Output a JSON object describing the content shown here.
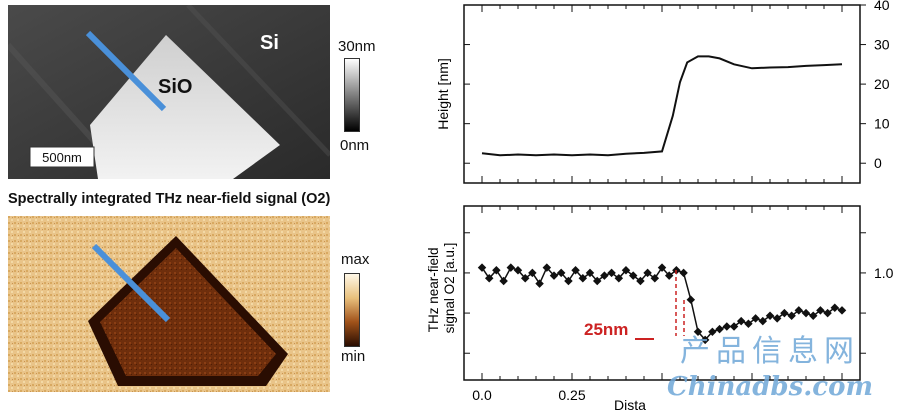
{
  "afm": {
    "label_si": "Si",
    "label_sio": "SiO",
    "scale_bar": "500nm",
    "colorbar_top": "30nm",
    "colorbar_bottom": "0nm"
  },
  "thz_map": {
    "title": "Spectrally integrated THz near-field signal (O2)",
    "colorbar_top": "max",
    "colorbar_bottom": "min"
  },
  "chart_data": [
    {
      "type": "line",
      "ylabel": "Height [nm]",
      "y_right_ticks": [
        "40",
        "30",
        "20",
        "10",
        "0"
      ],
      "ylim": [
        -5,
        40
      ],
      "xlim": [
        -0.05,
        1.05
      ],
      "x": [
        0.0,
        0.05,
        0.1,
        0.15,
        0.2,
        0.25,
        0.3,
        0.35,
        0.4,
        0.45,
        0.5,
        0.53,
        0.55,
        0.57,
        0.6,
        0.63,
        0.66,
        0.7,
        0.75,
        0.8,
        0.85,
        0.9,
        0.95,
        1.0
      ],
      "y": [
        2.5,
        2.0,
        2.2,
        2.0,
        2.2,
        2.0,
        2.2,
        2.0,
        2.4,
        2.6,
        3.0,
        12.0,
        20.5,
        25.5,
        27.0,
        27.0,
        26.5,
        25.0,
        24.0,
        24.2,
        24.3,
        24.6,
        24.8,
        25.0
      ]
    },
    {
      "type": "line",
      "ylabel": "THz near-field signal O2 [a.u.]",
      "y_right_ticks": [
        "1.0"
      ],
      "xlabel": "Dista",
      "x_tick_labels": [
        "0.0",
        "0.25"
      ],
      "ylim": [
        0.6,
        1.25
      ],
      "xlim": [
        -0.05,
        1.05
      ],
      "annotation": "25nm",
      "x": [
        0.0,
        0.02,
        0.04,
        0.06,
        0.08,
        0.1,
        0.12,
        0.14,
        0.16,
        0.18,
        0.2,
        0.22,
        0.24,
        0.26,
        0.28,
        0.3,
        0.32,
        0.34,
        0.36,
        0.38,
        0.4,
        0.42,
        0.44,
        0.46,
        0.48,
        0.5,
        0.52,
        0.54,
        0.56,
        0.58,
        0.6,
        0.62,
        0.64,
        0.66,
        0.68,
        0.7,
        0.72,
        0.74,
        0.76,
        0.78,
        0.8,
        0.82,
        0.84,
        0.86,
        0.88,
        0.9,
        0.92,
        0.94,
        0.96,
        0.98,
        1.0
      ],
      "y": [
        1.02,
        0.98,
        1.01,
        0.97,
        1.02,
        1.01,
        0.98,
        1.0,
        0.96,
        1.02,
        0.99,
        1.0,
        0.97,
        1.01,
        0.98,
        1.0,
        0.97,
        0.99,
        1.0,
        0.98,
        1.01,
        0.99,
        0.97,
        1.0,
        0.98,
        1.02,
        0.99,
        1.01,
        1.0,
        0.9,
        0.78,
        0.75,
        0.78,
        0.79,
        0.8,
        0.8,
        0.82,
        0.81,
        0.83,
        0.82,
        0.84,
        0.83,
        0.85,
        0.84,
        0.86,
        0.85,
        0.84,
        0.86,
        0.85,
        0.87,
        0.86
      ]
    }
  ],
  "watermark": {
    "line1": "产品信息网",
    "line2": "Chinadbs.com"
  }
}
